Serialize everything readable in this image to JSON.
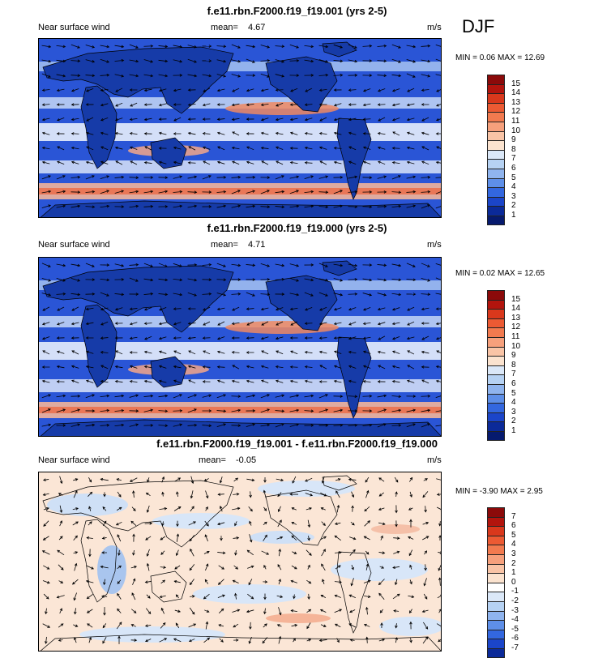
{
  "season": "DJF",
  "panels": [
    {
      "title": "f.e11.rbn.F2000.f19_f19.001 (yrs 2-5)",
      "left_label": "Near surface wind",
      "mean_label": "mean=",
      "mean_value": "4.67",
      "units": "m/s",
      "min_label": "MIN =",
      "min_value": "0.06",
      "max_label": "MAX =",
      "max_value": "12.69",
      "colorbar_levels": [
        "15",
        "14",
        "13",
        "12",
        "11",
        "10",
        "9",
        "8",
        "7",
        "6",
        "5",
        "4",
        "3",
        "2",
        "1"
      ],
      "colorbar_colors": [
        "#8b0a0a",
        "#b2140d",
        "#d9381c",
        "#ec5a33",
        "#f27a4f",
        "#f6a07c",
        "#f9c4a6",
        "#fbe3cf",
        "#dbe8f8",
        "#b6d2f3",
        "#8fb4ee",
        "#5e8fe8",
        "#3367df",
        "#1b45c9",
        "#0b2a99",
        "#061a6e"
      ]
    },
    {
      "title": "f.e11.rbn.F2000.f19_f19.000 (yrs 2-5)",
      "left_label": "Near surface wind",
      "mean_label": "mean=",
      "mean_value": "4.71",
      "units": "m/s",
      "min_label": "MIN =",
      "min_value": "0.02",
      "max_label": "MAX =",
      "max_value": "12.65",
      "colorbar_levels": [
        "15",
        "14",
        "13",
        "12",
        "11",
        "10",
        "9",
        "8",
        "7",
        "6",
        "5",
        "4",
        "3",
        "2",
        "1"
      ],
      "colorbar_colors": [
        "#8b0a0a",
        "#b2140d",
        "#d9381c",
        "#ec5a33",
        "#f27a4f",
        "#f6a07c",
        "#f9c4a6",
        "#fbe3cf",
        "#dbe8f8",
        "#b6d2f3",
        "#8fb4ee",
        "#5e8fe8",
        "#3367df",
        "#1b45c9",
        "#0b2a99",
        "#061a6e"
      ]
    },
    {
      "title": "f.e11.rbn.F2000.f19_f19.001 - f.e11.rbn.F2000.f19_f19.000",
      "left_label": "Near surface wind",
      "mean_label": "mean=",
      "mean_value": "-0.05",
      "units": "m/s",
      "min_label": "MIN =",
      "min_value": "-3.90",
      "max_label": "MAX =",
      "max_value": "2.95",
      "colorbar_levels": [
        "7",
        "6",
        "5",
        "4",
        "3",
        "2",
        "1",
        "0",
        "-1",
        "-2",
        "-3",
        "-4",
        "-5",
        "-6",
        "-7"
      ],
      "colorbar_colors": [
        "#8b0a0a",
        "#b2140d",
        "#d9381c",
        "#ec5a33",
        "#f27a4f",
        "#f6a07c",
        "#f9c4a6",
        "#fbe3cf",
        "#ffffff",
        "#dbe8f8",
        "#b6d2f3",
        "#8fb4ee",
        "#5e8fe8",
        "#3367df",
        "#1b45c9",
        "#0b2a99"
      ]
    }
  ]
}
